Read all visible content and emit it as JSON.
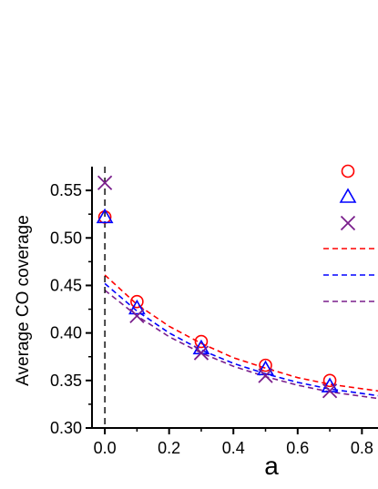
{
  "chart_data": {
    "type": "scatter",
    "xlabel": "a",
    "ylabel": "Average CO coverage",
    "xlim": [
      -0.04,
      0.85
    ],
    "ylim": [
      0.3,
      0.575
    ],
    "x_ticks": [
      "0.0",
      "0.2",
      "0.4",
      "0.6",
      "0.8"
    ],
    "x_tick_values": [
      0.0,
      0.2,
      0.4,
      0.6,
      0.8
    ],
    "y_ticks": [
      "0.30",
      "0.35",
      "0.40",
      "0.45",
      "0.50",
      "0.55"
    ],
    "y_tick_values": [
      0.3,
      0.35,
      0.4,
      0.45,
      0.5,
      0.55
    ],
    "grid": false,
    "legend": "top-right (labels cut off)",
    "reference_line": {
      "x": 0.0,
      "style": "dashed",
      "color": "#000000"
    },
    "series": [
      {
        "marker": "circle",
        "color": "#ff0000",
        "x": [
          0.0,
          0.1,
          0.3,
          0.5,
          0.7
        ],
        "y": [
          0.522,
          0.433,
          0.391,
          0.366,
          0.35
        ]
      },
      {
        "marker": "triangle",
        "color": "#0000ff",
        "x": [
          0.0,
          0.1,
          0.3,
          0.5,
          0.7
        ],
        "y": [
          0.522,
          0.426,
          0.384,
          0.362,
          0.344
        ]
      },
      {
        "marker": "x",
        "color": "#7a1f8c",
        "x": [
          0.0,
          0.1,
          0.3,
          0.5,
          0.7
        ],
        "y": [
          0.558,
          0.418,
          0.379,
          0.355,
          0.339
        ]
      }
    ],
    "fits": [
      {
        "style": "dashed",
        "color": "#ff0000",
        "x": [
          0.0,
          0.1,
          0.2,
          0.3,
          0.4,
          0.5,
          0.6,
          0.7,
          0.85
        ],
        "y": [
          0.461,
          0.43,
          0.407,
          0.389,
          0.374,
          0.363,
          0.353,
          0.346,
          0.339
        ]
      },
      {
        "style": "dashed",
        "color": "#0000ff",
        "x": [
          0.0,
          0.1,
          0.2,
          0.3,
          0.4,
          0.5,
          0.6,
          0.7,
          0.85
        ],
        "y": [
          0.452,
          0.423,
          0.4,
          0.382,
          0.368,
          0.357,
          0.348,
          0.341,
          0.334
        ]
      },
      {
        "style": "dashed",
        "color": "#7a1f8c",
        "x": [
          0.0,
          0.1,
          0.2,
          0.3,
          0.4,
          0.5,
          0.6,
          0.7,
          0.85
        ],
        "y": [
          0.445,
          0.418,
          0.396,
          0.379,
          0.365,
          0.354,
          0.345,
          0.338,
          0.331
        ]
      }
    ]
  }
}
